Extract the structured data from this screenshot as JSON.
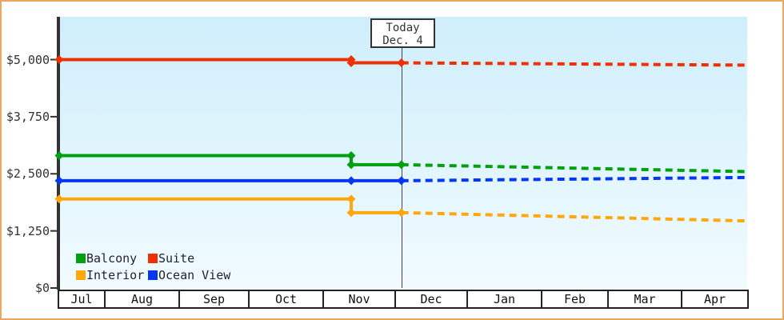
{
  "chart_data": {
    "type": "line",
    "title": "",
    "x_axis": {
      "months": [
        "Jul",
        "Aug",
        "Sep",
        "Oct",
        "Nov",
        "Dec",
        "Jan",
        "Feb",
        "Mar",
        "Apr"
      ]
    },
    "y_axis": {
      "ticks": [
        {
          "label": "$0",
          "value": 0
        },
        {
          "label": "$1,250",
          "value": 1250
        },
        {
          "label": "$2,500",
          "value": 2500
        },
        {
          "label": "$3,750",
          "value": 3750
        },
        {
          "label": "$5,000",
          "value": 5000
        }
      ],
      "min": 0,
      "max": 5900
    },
    "today": {
      "line1": "Today",
      "line2": "Dec. 4",
      "date": "Dec 4"
    },
    "series": [
      {
        "name": "Suite",
        "color": "#ee3104",
        "history": [
          {
            "date": "Jul 12",
            "value": 4999
          },
          {
            "date": "Nov 13",
            "value": 4999
          },
          {
            "date": "Nov 13",
            "value": 4929
          },
          {
            "date": "Dec 4",
            "value": 4929
          }
        ],
        "projection": [
          {
            "date": "Dec 4",
            "value": 4929
          },
          {
            "date": "Apr 30",
            "value": 4879
          }
        ]
      },
      {
        "name": "Balcony",
        "color": "#00a010",
        "history": [
          {
            "date": "Jul 12",
            "value": 2899
          },
          {
            "date": "Nov 13",
            "value": 2899
          },
          {
            "date": "Nov 13",
            "value": 2699
          },
          {
            "date": "Dec 4",
            "value": 2699
          }
        ],
        "projection": [
          {
            "date": "Dec 4",
            "value": 2699
          },
          {
            "date": "Apr 30",
            "value": 2549
          }
        ]
      },
      {
        "name": "Ocean View",
        "color": "#0438f0",
        "history": [
          {
            "date": "Jul 12",
            "value": 2349
          },
          {
            "date": "Nov 13",
            "value": 2349
          },
          {
            "date": "Dec 4",
            "value": 2349
          }
        ],
        "projection": [
          {
            "date": "Dec 4",
            "value": 2349
          },
          {
            "date": "Apr 30",
            "value": 2419
          }
        ]
      },
      {
        "name": "Interior",
        "color": "#ffa70d",
        "history": [
          {
            "date": "Jul 12",
            "value": 1949
          },
          {
            "date": "Nov 13",
            "value": 1949
          },
          {
            "date": "Nov 13",
            "value": 1649
          },
          {
            "date": "Dec 4",
            "value": 1649
          }
        ],
        "projection": [
          {
            "date": "Dec 4",
            "value": 1649
          },
          {
            "date": "Apr 30",
            "value": 1469
          }
        ]
      }
    ],
    "legend": [
      {
        "label": "Balcony",
        "color": "#00a010"
      },
      {
        "label": "Suite",
        "color": "#ee3104"
      },
      {
        "label": "Interior",
        "color": "#ffa70d"
      },
      {
        "label": "Ocean View",
        "color": "#0438f0"
      }
    ],
    "grid": false,
    "legend_position": "inside-bottom-left",
    "projection_style": "dashed"
  },
  "colors": {
    "frame_border": "#eba660",
    "axis": "#333333",
    "plot_bg_top": "#cfeefb",
    "plot_bg_bottom": "#f1fbff",
    "today_line": "#444444",
    "cell_border": "#222222",
    "text": "#2a2a2a"
  }
}
